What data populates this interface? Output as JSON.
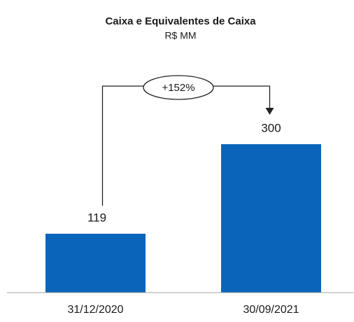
{
  "chart_data": {
    "type": "bar",
    "title": "Caixa e Equivalentes de Caixa",
    "subtitle": "R$ MM",
    "categories": [
      "31/12/2020",
      "30/09/2021"
    ],
    "values": [
      119,
      300
    ],
    "color": "#0a64b9",
    "annotation": "+152%"
  }
}
